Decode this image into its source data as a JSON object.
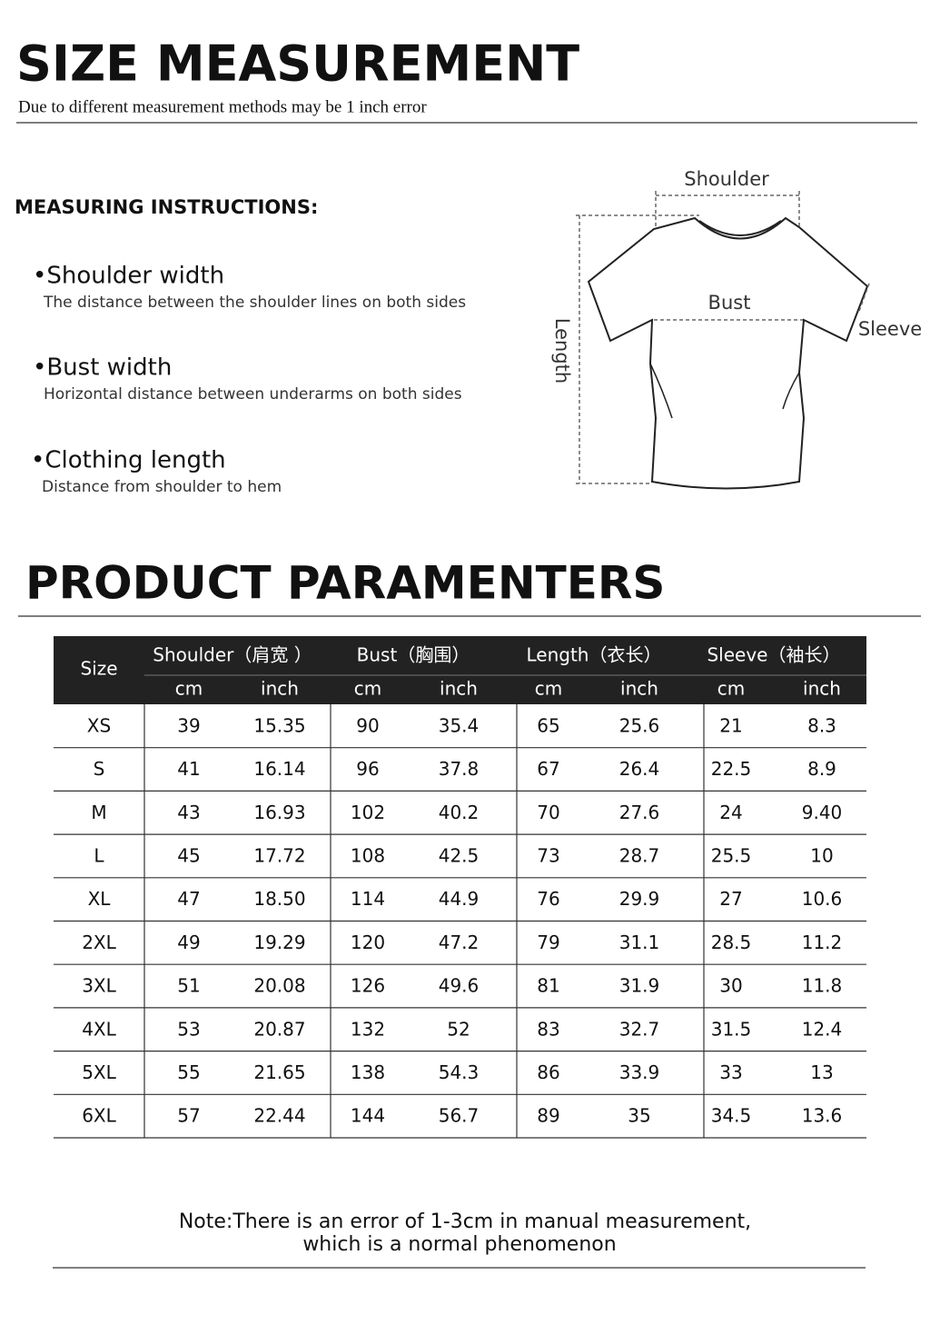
{
  "header": {
    "title": "SIZE  MEASUREMENT",
    "subtitle": "Due to different measurement methods may be 1 inch error"
  },
  "instructions": {
    "heading": "MEASURING INSTRUCTIONS:",
    "items": [
      {
        "name": "•Shoulder width",
        "description": "The distance between the shoulder lines on both sides"
      },
      {
        "name": "•Bust width",
        "description": "Horizontal distance between underarms on both sides"
      },
      {
        "name": "•Clothing length",
        "description": "Distance from shoulder to hem"
      }
    ]
  },
  "diagram": {
    "shoulder": "Shoulder",
    "bust": "Bust",
    "sleeve": "Sleeve",
    "length": "Length"
  },
  "table": {
    "title": "PRODUCT PARAMENTERS",
    "size_header": "Size",
    "groups": [
      "Shoulder（肩宽 ）",
      "Bust（胸围）",
      "Length（衣长）",
      "Sleeve（袖长）"
    ],
    "units": [
      "cm",
      "inch",
      "cm",
      "inch",
      "cm",
      "inch",
      "cm",
      "inch"
    ],
    "rows": [
      [
        "XS",
        "39",
        "15.35",
        "90",
        "35.4",
        "65",
        "25.6",
        "21",
        "8.3"
      ],
      [
        "S",
        "41",
        "16.14",
        "96",
        "37.8",
        "67",
        "26.4",
        "22.5",
        "8.9"
      ],
      [
        "M",
        "43",
        "16.93",
        "102",
        "40.2",
        "70",
        "27.6",
        "24",
        "9.40"
      ],
      [
        "L",
        "45",
        "17.72",
        "108",
        "42.5",
        "73",
        "28.7",
        "25.5",
        "10"
      ],
      [
        "XL",
        "47",
        "18.50",
        "114",
        "44.9",
        "76",
        "29.9",
        "27",
        "10.6"
      ],
      [
        "2XL",
        "49",
        "19.29",
        "120",
        "47.2",
        "79",
        "31.1",
        "28.5",
        "11.2"
      ],
      [
        "3XL",
        "51",
        "20.08",
        "126",
        "49.6",
        "81",
        "31.9",
        "30",
        "11.8"
      ],
      [
        "4XL",
        "53",
        "20.87",
        "132",
        "52",
        "83",
        "32.7",
        "31.5",
        "12.4"
      ],
      [
        "5XL",
        "55",
        "21.65",
        "138",
        "54.3",
        "86",
        "33.9",
        "33",
        "13"
      ],
      [
        "6XL",
        "57",
        "22.44",
        "144",
        "56.7",
        "89",
        "35",
        "34.5",
        "13.6"
      ]
    ]
  },
  "note": [
    "Note:There is an error of 1-3cm in manual measurement,",
    "which is a normal phenomenon"
  ]
}
